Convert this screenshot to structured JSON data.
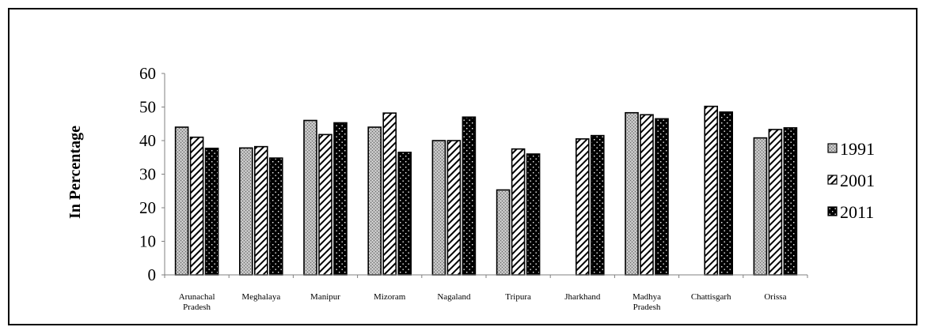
{
  "chart_data": {
    "type": "bar",
    "title": "",
    "xlabel": "",
    "ylabel": "In Percentage",
    "ylim": [
      0,
      60
    ],
    "yticks": [
      0,
      10,
      20,
      30,
      40,
      50,
      60
    ],
    "grid": false,
    "legend_position": "right",
    "categories": [
      [
        "Arunachal",
        "Pradesh"
      ],
      [
        "Meghalaya"
      ],
      [
        "Manipur"
      ],
      [
        "Mizoram"
      ],
      [
        "Nagaland"
      ],
      [
        "Tripura"
      ],
      [
        "Jharkhand"
      ],
      [
        "Madhya",
        "Pradesh"
      ],
      [
        "Chattisgarh"
      ],
      [
        "Orissa"
      ]
    ],
    "series": [
      {
        "name": "1991",
        "pattern": "crosshatch",
        "values": [
          44.0,
          37.8,
          46.0,
          44.0,
          40.0,
          25.3,
          null,
          48.3,
          null,
          40.8
        ]
      },
      {
        "name": "2001",
        "pattern": "diagonal",
        "values": [
          41.0,
          38.2,
          41.8,
          48.2,
          40.0,
          37.5,
          40.5,
          47.7,
          50.2,
          43.3
        ]
      },
      {
        "name": "2011",
        "pattern": "black-dots",
        "values": [
          37.7,
          34.8,
          45.3,
          36.5,
          47.0,
          36.0,
          41.5,
          46.5,
          48.5,
          43.8
        ]
      }
    ]
  }
}
